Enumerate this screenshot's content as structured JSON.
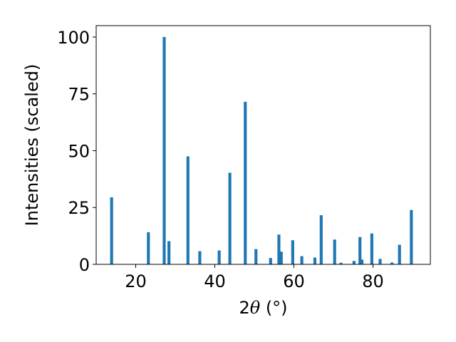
{
  "chart_data": {
    "type": "bar",
    "xlabel_prefix": "2",
    "xlabel_symbol": "θ",
    "xlabel_suffix": " (°)",
    "ylabel": "Intensities (scaled)",
    "xlim": [
      10,
      94.5
    ],
    "ylim": [
      0,
      105
    ],
    "xticks": [
      20,
      40,
      60,
      80
    ],
    "yticks": [
      0,
      25,
      50,
      75,
      100
    ],
    "grid": false,
    "bar_color": "#1f77b4",
    "bar_width_deg": 0.75,
    "series": [
      {
        "x": [
          13.9,
          23.2,
          27.2,
          28.4,
          33.2,
          36.2,
          41.1,
          43.8,
          47.7,
          50.4,
          54.1,
          56.2,
          56.8,
          59.7,
          62.0,
          65.3,
          66.9,
          70.3,
          71.9,
          75.2,
          76.7,
          77.2,
          79.7,
          81.8,
          84.8,
          86.7,
          89.7
        ],
        "values": [
          29.5,
          14.1,
          100,
          10.2,
          47.5,
          5.8,
          6.1,
          40.3,
          71.5,
          6.7,
          2.8,
          13.1,
          5.6,
          10.6,
          3.6,
          3.0,
          21.6,
          10.9,
          0.7,
          1.5,
          12.0,
          2.1,
          13.6,
          2.4,
          0.8,
          8.6,
          23.9
        ]
      }
    ]
  }
}
